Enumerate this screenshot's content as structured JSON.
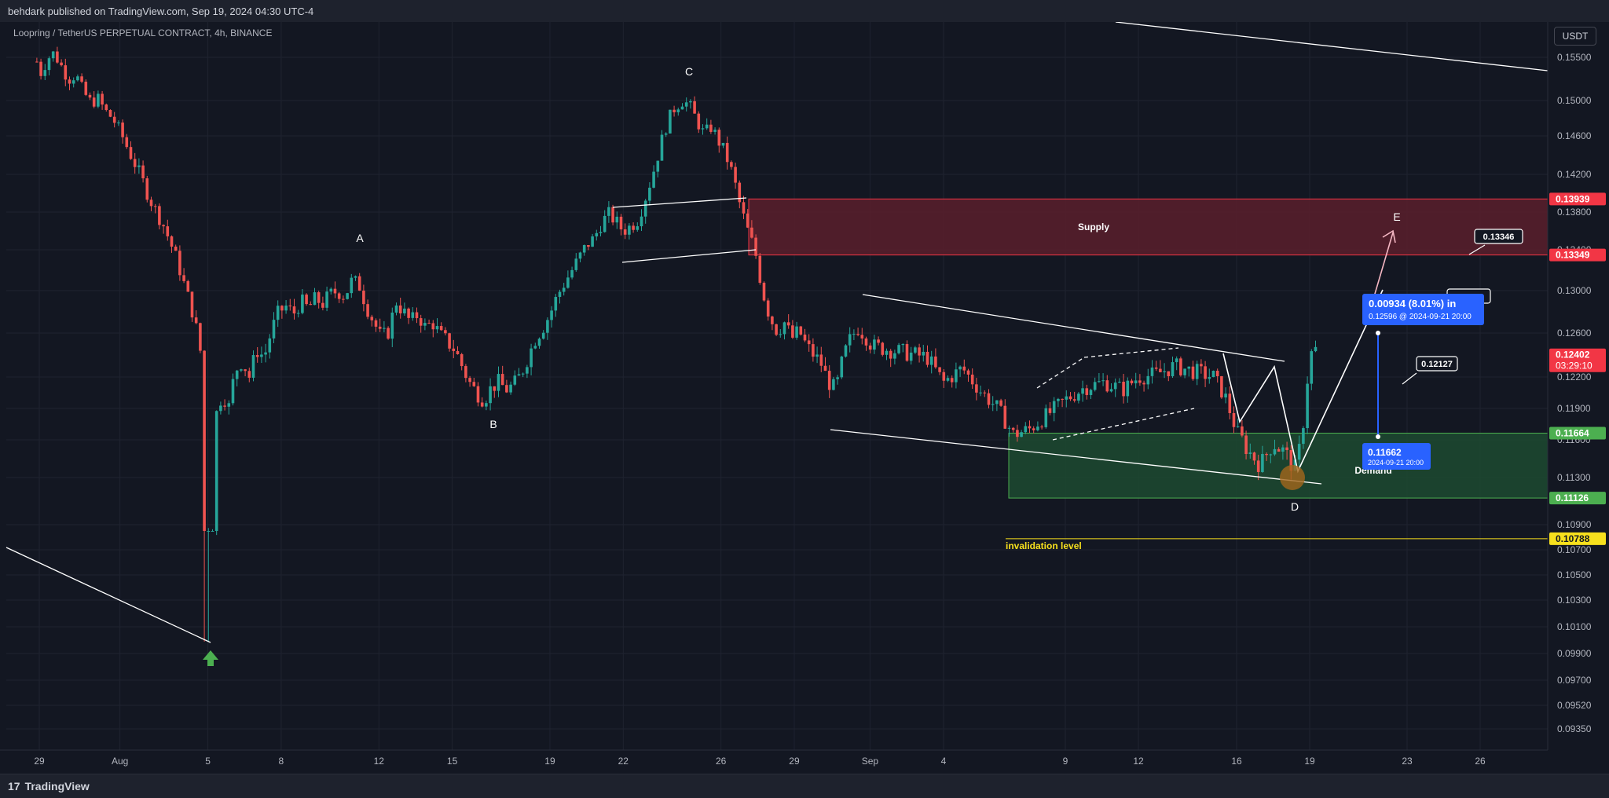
{
  "header": {
    "published": "behdark published on TradingView.com, Sep 19, 2024 04:30 UTC-4",
    "symbol": "Loopring / TetherUS PERPETUAL CONTRACT, 4h, BINANCE",
    "currency": "USDT"
  },
  "footer": {
    "brand": "TradingView",
    "logo_glyph": "17"
  },
  "colors": {
    "background": "#131722",
    "up": "#26a69a",
    "down": "#ef5350",
    "supply_fill": "#5a1e2b",
    "demand_fill": "#1d4a30",
    "invalidation": "#f7e01d",
    "measure": "#2962ff"
  },
  "chart_data": {
    "type": "candlestick",
    "y_range": [
      0.0925,
      0.1565
    ],
    "x_range": [
      -1.4,
      31.2
    ],
    "price_ticks": [
      0.155,
      0.15,
      0.146,
      0.142,
      0.138,
      0.134,
      0.13,
      0.126,
      0.122,
      0.119,
      0.116,
      0.113,
      0.109,
      0.107,
      0.105,
      0.103,
      0.101,
      0.099,
      0.097,
      0.0952,
      0.0935
    ],
    "x_ticks": [
      {
        "label": "29",
        "day": -2.9
      },
      {
        "label": "Aug",
        "day": 0.4
      },
      {
        "label": "5",
        "day": 4
      },
      {
        "label": "8",
        "day": 7
      },
      {
        "label": "12",
        "day": 11
      },
      {
        "label": "15",
        "day": 14
      },
      {
        "label": "19",
        "day": 18
      },
      {
        "label": "22",
        "day": 21
      },
      {
        "label": "26",
        "day": 25
      },
      {
        "label": "29",
        "day": 28
      },
      {
        "label": "Sep",
        "day": 31.1
      }
    ],
    "x_ticks_px": [
      {
        "label": "4",
        "px": 1201
      },
      {
        "label": "9",
        "px": 1356
      },
      {
        "label": "12",
        "px": 1449
      },
      {
        "label": "16",
        "px": 1574
      },
      {
        "label": "19",
        "px": 1667
      },
      {
        "label": "23",
        "px": 1791
      },
      {
        "label": "26",
        "px": 1884
      }
    ],
    "price_labels": [
      {
        "value": "0.13939",
        "price": 0.13939,
        "bg": "#f23645",
        "fg": "#ffffff"
      },
      {
        "value": "0.13349",
        "price": 0.13349,
        "bg": "#f23645",
        "fg": "#ffffff"
      },
      {
        "value": "0.12402",
        "price": 0.12402,
        "bg": "#f23645",
        "fg": "#ffffff",
        "sub": "03:29:10"
      },
      {
        "value": "0.11664",
        "price": 0.11664,
        "bg": "#4caf50",
        "fg": "#ffffff"
      },
      {
        "value": "0.11126",
        "price": 0.11126,
        "bg": "#4caf50",
        "fg": "#ffffff"
      },
      {
        "value": "0.10788",
        "price": 0.10788,
        "bg": "#f7e01d",
        "fg": "#131722"
      }
    ],
    "zones": [
      {
        "label": "Supply",
        "top": 0.13939,
        "bottom": 0.13349,
        "color": "#f23645"
      },
      {
        "label": "Demand",
        "top": 0.11664,
        "bottom": 0.11126,
        "color": "#4caf50"
      }
    ],
    "invalidation": {
      "label": "invalidation level",
      "price": 0.10788
    },
    "wave_labels": [
      "A",
      "B",
      "C",
      "D",
      "E"
    ],
    "target_labels": [
      "0.13346",
      "0.12127"
    ],
    "measure": {
      "top_text": "0.00934 (8.01%) in",
      "top_sub": "0.12596 @ 2024-09-21  20:00",
      "bottom_text": "0.11662",
      "bottom_sub": "2024-09-21  20:00"
    },
    "path": [
      [
        -3.0,
        0.1545
      ],
      [
        -2.8,
        0.153
      ],
      [
        -2.6,
        0.1548
      ],
      [
        -2.3,
        0.1555
      ],
      [
        -2.0,
        0.154
      ],
      [
        -1.7,
        0.1525
      ],
      [
        -1.4,
        0.153
      ],
      [
        -1.1,
        0.151
      ],
      [
        -0.8,
        0.1498
      ],
      [
        -0.5,
        0.1502
      ],
      [
        -0.2,
        0.1488
      ],
      [
        0.1,
        0.148
      ],
      [
        0.4,
        0.1465
      ],
      [
        0.7,
        0.1448
      ],
      [
        1.0,
        0.1432
      ],
      [
        1.3,
        0.1415
      ],
      [
        1.6,
        0.1395
      ],
      [
        1.9,
        0.138
      ],
      [
        2.2,
        0.1365
      ],
      [
        2.5,
        0.1345
      ],
      [
        2.8,
        0.1325
      ],
      [
        3.1,
        0.13
      ],
      [
        3.4,
        0.1278
      ],
      [
        3.6,
        0.1255
      ],
      [
        3.8,
        0.123
      ],
      [
        3.95,
        0.121
      ],
      [
        4.1,
        0.119
      ],
      [
        4.35,
        0.1185
      ],
      [
        4.6,
        0.1205
      ],
      [
        4.85,
        0.119
      ],
      [
        5.1,
        0.1225
      ],
      [
        5.4,
        0.1235
      ],
      [
        5.7,
        0.122
      ],
      [
        6.0,
        0.1245
      ],
      [
        6.3,
        0.1238
      ],
      [
        6.6,
        0.1262
      ],
      [
        6.9,
        0.128
      ],
      [
        7.2,
        0.1285
      ],
      [
        7.5,
        0.1278
      ],
      [
        7.8,
        0.129
      ],
      [
        8.1,
        0.1283
      ],
      [
        8.4,
        0.1292
      ],
      [
        8.7,
        0.1288
      ],
      [
        9.0,
        0.1296
      ],
      [
        9.3,
        0.13
      ],
      [
        9.6,
        0.1295
      ],
      [
        9.9,
        0.131
      ],
      [
        10.2,
        0.1305
      ],
      [
        10.5,
        0.1285
      ],
      [
        10.8,
        0.127
      ],
      [
        11.1,
        0.1255
      ],
      [
        11.4,
        0.1262
      ],
      [
        11.7,
        0.129
      ],
      [
        12.0,
        0.128
      ],
      [
        12.3,
        0.127
      ],
      [
        12.6,
        0.1278
      ],
      [
        12.9,
        0.1265
      ],
      [
        13.2,
        0.127
      ],
      [
        13.5,
        0.1258
      ],
      [
        13.8,
        0.1252
      ],
      [
        14.1,
        0.1245
      ],
      [
        14.4,
        0.123
      ],
      [
        14.7,
        0.1215
      ],
      [
        15.0,
        0.1205
      ],
      [
        15.3,
        0.1198
      ],
      [
        15.6,
        0.121
      ],
      [
        15.9,
        0.1215
      ],
      [
        16.2,
        0.1208
      ],
      [
        16.5,
        0.1212
      ],
      [
        16.8,
        0.1222
      ],
      [
        17.1,
        0.1238
      ],
      [
        17.4,
        0.1255
      ],
      [
        17.7,
        0.1265
      ],
      [
        18.0,
        0.1278
      ],
      [
        18.3,
        0.1295
      ],
      [
        18.6,
        0.1308
      ],
      [
        18.9,
        0.132
      ],
      [
        19.2,
        0.1332
      ],
      [
        19.5,
        0.1345
      ],
      [
        19.8,
        0.1352
      ],
      [
        20.1,
        0.1368
      ],
      [
        20.4,
        0.1378
      ],
      [
        20.7,
        0.137
      ],
      [
        21.0,
        0.136
      ],
      [
        21.3,
        0.1365
      ],
      [
        21.6,
        0.1372
      ],
      [
        21.9,
        0.1395
      ],
      [
        22.2,
        0.142
      ],
      [
        22.5,
        0.1448
      ],
      [
        22.8,
        0.1475
      ],
      [
        23.1,
        0.1492
      ],
      [
        23.4,
        0.15
      ],
      [
        23.7,
        0.1495
      ],
      [
        24.0,
        0.1478
      ],
      [
        24.3,
        0.1462
      ],
      [
        24.6,
        0.147
      ],
      [
        24.9,
        0.1455
      ],
      [
        25.2,
        0.144
      ],
      [
        25.5,
        0.1418
      ],
      [
        25.8,
        0.1385
      ],
      [
        26.1,
        0.136
      ],
      [
        26.4,
        0.1338
      ],
      [
        26.7,
        0.13
      ],
      [
        27.0,
        0.1275
      ],
      [
        27.3,
        0.1262
      ],
      [
        27.6,
        0.127
      ],
      [
        27.9,
        0.1255
      ],
      [
        28.2,
        0.1262
      ],
      [
        28.5,
        0.1248
      ],
      [
        28.8,
        0.124
      ],
      [
        29.1,
        0.1232
      ],
      [
        29.4,
        0.1215
      ],
      [
        29.7,
        0.1208
      ],
      [
        30.0,
        0.1238
      ],
      [
        30.3,
        0.1255
      ],
      [
        30.6,
        0.1265
      ],
      [
        30.9,
        0.1258
      ],
      [
        31.2,
        0.1248
      ]
    ]
  }
}
